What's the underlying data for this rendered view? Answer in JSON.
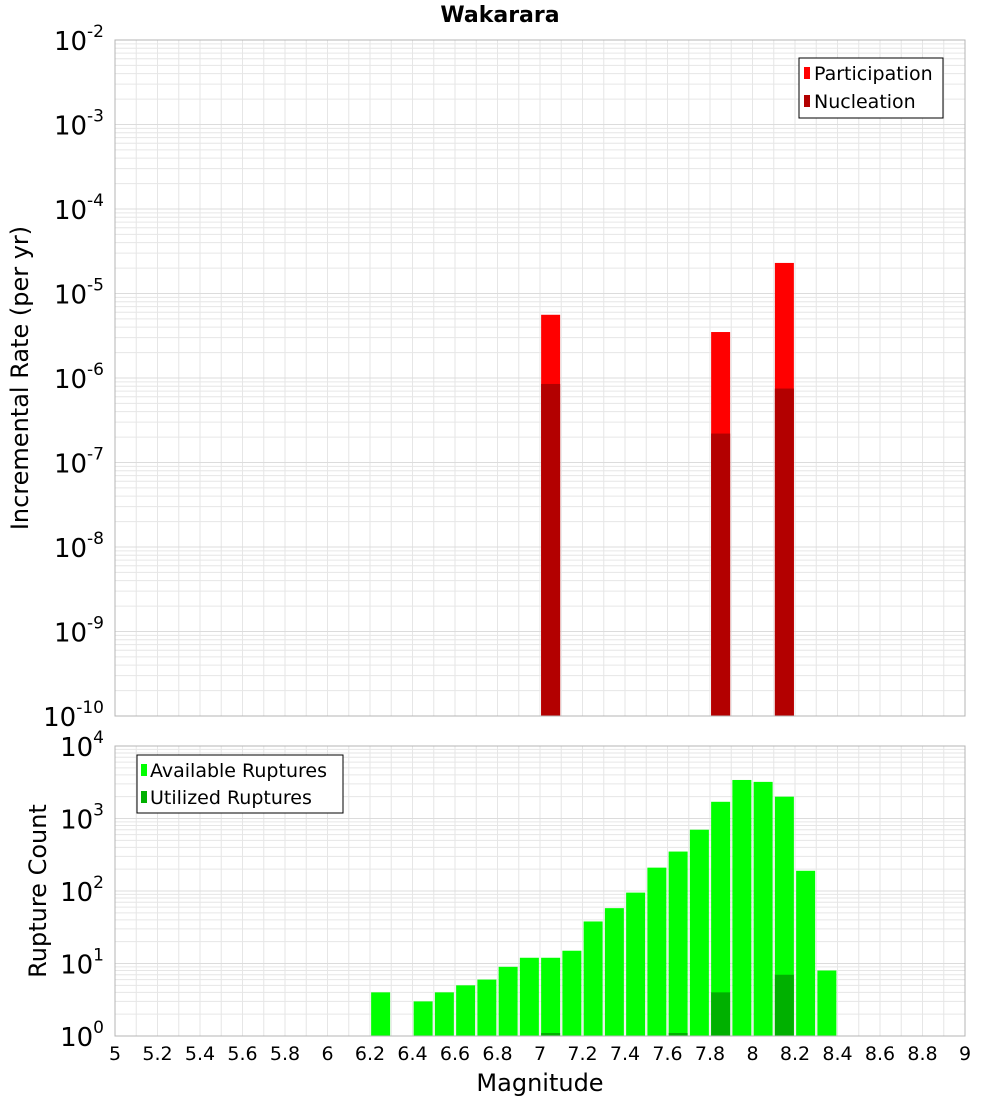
{
  "title": "Wakarara",
  "colors": {
    "participation": "#ff0000",
    "nucleation": "#b30000",
    "available": "#00ff00",
    "utilized": "#00b000",
    "grid": "#e6e6e6",
    "frame": "#b4b4b4"
  },
  "chart_data": [
    {
      "type": "bar",
      "title": "Wakarara",
      "xlabel": "",
      "ylabel": "Incremental Rate (per yr)",
      "yscale": "log",
      "ylim": [
        1e-10,
        0.01
      ],
      "xlim": [
        5,
        9
      ],
      "y_tick_labels": [
        {
          "base": "10",
          "exp": "-10"
        },
        {
          "base": "10",
          "exp": "-9"
        },
        {
          "base": "10",
          "exp": "-8"
        },
        {
          "base": "10",
          "exp": "-7"
        },
        {
          "base": "10",
          "exp": "-6"
        },
        {
          "base": "10",
          "exp": "-5"
        },
        {
          "base": "10",
          "exp": "-4"
        },
        {
          "base": "10",
          "exp": "-3"
        },
        {
          "base": "10",
          "exp": "-2"
        }
      ],
      "legend_position": "top-right",
      "series": [
        {
          "name": "Participation",
          "color": "#ff0000",
          "x": [
            7.05,
            7.85,
            8.15
          ],
          "values": [
            5.6e-06,
            3.5e-06,
            2.3e-05
          ]
        },
        {
          "name": "Nucleation",
          "color": "#b30000",
          "x": [
            7.05,
            7.85,
            8.15
          ],
          "values": [
            8.5e-07,
            2.2e-07,
            7.5e-07
          ]
        }
      ],
      "grid": true
    },
    {
      "type": "bar",
      "xlabel": "Magnitude",
      "ylabel": "Rupture Count",
      "yscale": "log",
      "ylim": [
        1,
        10000
      ],
      "xlim": [
        5,
        9
      ],
      "x_tick_labels": [
        "5",
        "5.2",
        "5.4",
        "5.6",
        "5.8",
        "6",
        "6.2",
        "6.4",
        "6.6",
        "6.8",
        "7",
        "7.2",
        "7.4",
        "7.6",
        "7.8",
        "8",
        "8.2",
        "8.4",
        "8.6",
        "8.8",
        "9"
      ],
      "y_tick_labels": [
        {
          "base": "10",
          "exp": "0"
        },
        {
          "base": "10",
          "exp": "1"
        },
        {
          "base": "10",
          "exp": "2"
        },
        {
          "base": "10",
          "exp": "3"
        },
        {
          "base": "10",
          "exp": "4"
        }
      ],
      "legend_position": "top-left",
      "series": [
        {
          "name": "Available Ruptures",
          "color": "#00ff00",
          "x": [
            6.25,
            6.45,
            6.55,
            6.65,
            6.75,
            6.85,
            6.95,
            7.05,
            7.15,
            7.25,
            7.35,
            7.45,
            7.55,
            7.65,
            7.75,
            7.85,
            7.95,
            8.05,
            8.15,
            8.25,
            8.35
          ],
          "values": [
            4,
            3,
            4,
            5,
            6,
            9,
            12,
            12,
            15,
            38,
            58,
            95,
            210,
            350,
            700,
            1700,
            3400,
            3200,
            2000,
            190,
            8
          ]
        },
        {
          "name": "Utilized Ruptures",
          "color": "#00b000",
          "x": [
            7.05,
            7.65,
            7.85,
            8.15
          ],
          "values": [
            1.1,
            1.1,
            4,
            7
          ]
        }
      ],
      "grid": true
    }
  ]
}
